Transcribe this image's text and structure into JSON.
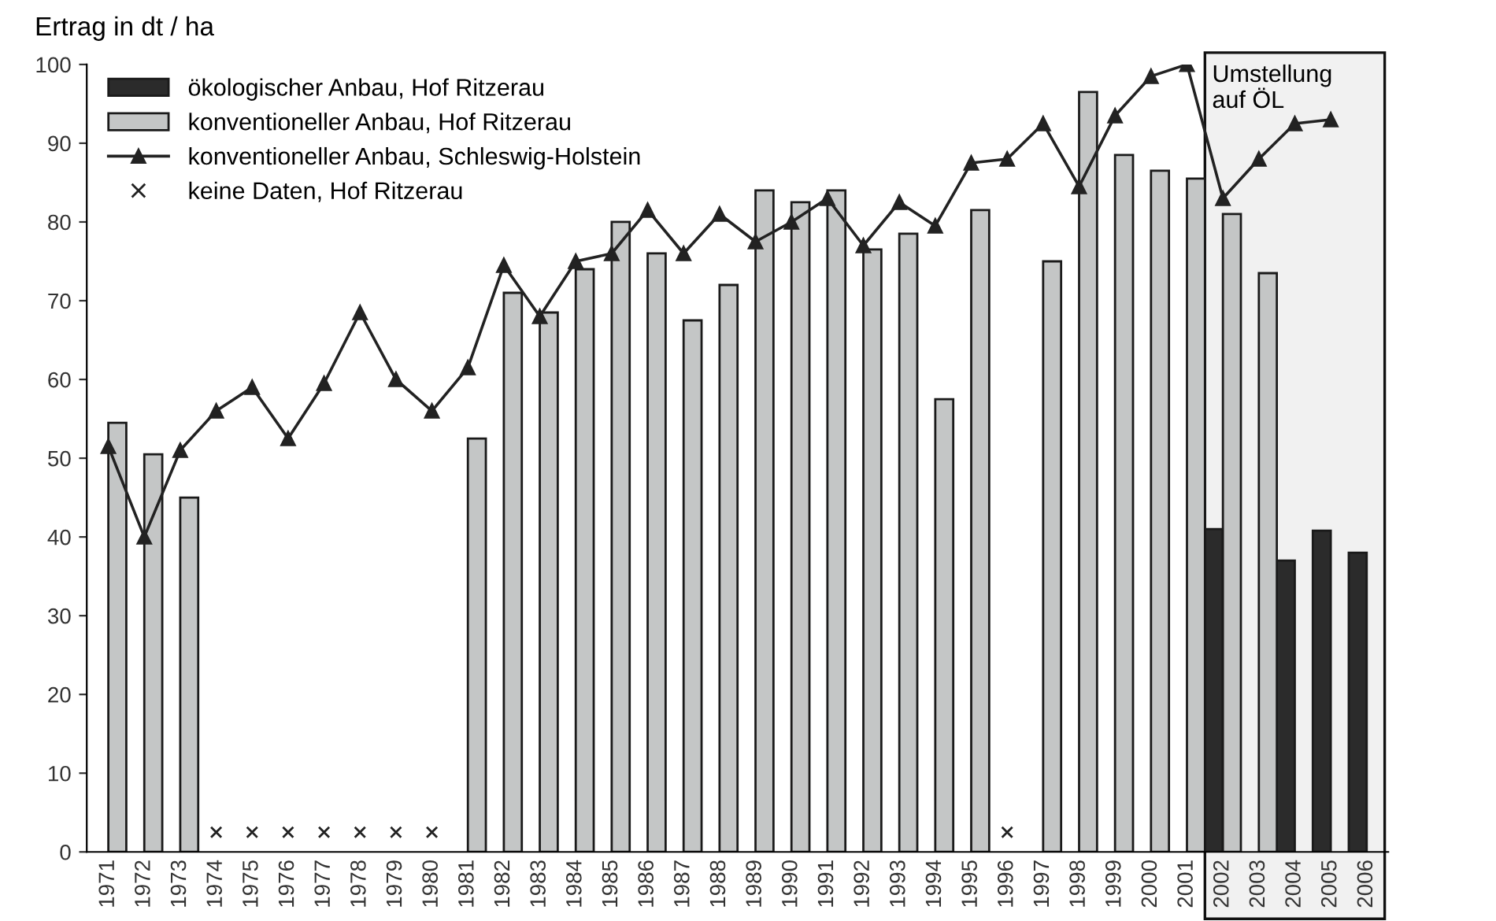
{
  "chart_data": {
    "type": "bar",
    "ylabel": "Ertrag in dt / ha",
    "categories": [
      "1971",
      "1972",
      "1973",
      "1974",
      "1975",
      "1976",
      "1977",
      "1978",
      "1979",
      "1980",
      "1981",
      "1982",
      "1983",
      "1984",
      "1985",
      "1986",
      "1987",
      "1988",
      "1989",
      "1990",
      "1991",
      "1992",
      "1993",
      "1994",
      "1995",
      "1996",
      "1997",
      "1998",
      "1999",
      "2000",
      "2001",
      "2002",
      "2003",
      "2004",
      "2005",
      "2006"
    ],
    "series": [
      {
        "name": "ökologischer Anbau, Hof Ritzerau",
        "color": "#2b2b2b",
        "values": [
          null,
          null,
          null,
          null,
          null,
          null,
          null,
          null,
          null,
          null,
          null,
          null,
          null,
          null,
          null,
          null,
          null,
          null,
          null,
          null,
          null,
          null,
          null,
          null,
          null,
          null,
          null,
          null,
          null,
          null,
          null,
          41,
          null,
          37,
          40.8,
          38
        ]
      },
      {
        "name": "konventioneller Anbau, Hof Ritzerau",
        "color": "#c4c6c6",
        "values": [
          54.5,
          50.5,
          45,
          null,
          null,
          null,
          null,
          null,
          null,
          null,
          52.5,
          71,
          68.5,
          74,
          80,
          76,
          67.5,
          72,
          84,
          82.5,
          84,
          76.5,
          78.5,
          57.5,
          81.5,
          null,
          75,
          96.5,
          88.5,
          86.5,
          85.5,
          81,
          73.5,
          null,
          null,
          null
        ]
      },
      {
        "name": "konventioneller Anbau, Schleswig-Holstein",
        "type": "line",
        "color": "#222222",
        "marker": "triangle",
        "line_style": "solid",
        "values": [
          51.5,
          40,
          51,
          56,
          59,
          52.5,
          59.5,
          68.5,
          60,
          56,
          61.5,
          74.5,
          68,
          75,
          76,
          81.5,
          76,
          81,
          77.5,
          80,
          83,
          77,
          82.5,
          79.5,
          87.5,
          88,
          92.5,
          84.5,
          93.5,
          98.5,
          100,
          83,
          88,
          92.5,
          93,
          null
        ]
      },
      {
        "name": "keine Daten, Hof Ritzerau",
        "type": "scatter",
        "color": "#222222",
        "marker": "cross",
        "values": [
          null,
          null,
          null,
          2.5,
          2.5,
          2.5,
          2.5,
          2.5,
          2.5,
          2.5,
          null,
          null,
          null,
          null,
          null,
          null,
          null,
          null,
          null,
          null,
          null,
          null,
          null,
          null,
          null,
          2.5,
          null,
          null,
          null,
          null,
          null,
          null,
          null,
          null,
          null,
          null
        ]
      }
    ],
    "ylim": [
      0,
      100
    ],
    "yticks": [
      0,
      10,
      20,
      30,
      40,
      50,
      60,
      70,
      80,
      90,
      100
    ],
    "grid": false,
    "legend": "top left",
    "bands": [
      {
        "axis": "x",
        "from": "2002",
        "to": "2006",
        "label": "Umstellung\nauf ÖL",
        "color": "#f1f1f1"
      }
    ]
  }
}
